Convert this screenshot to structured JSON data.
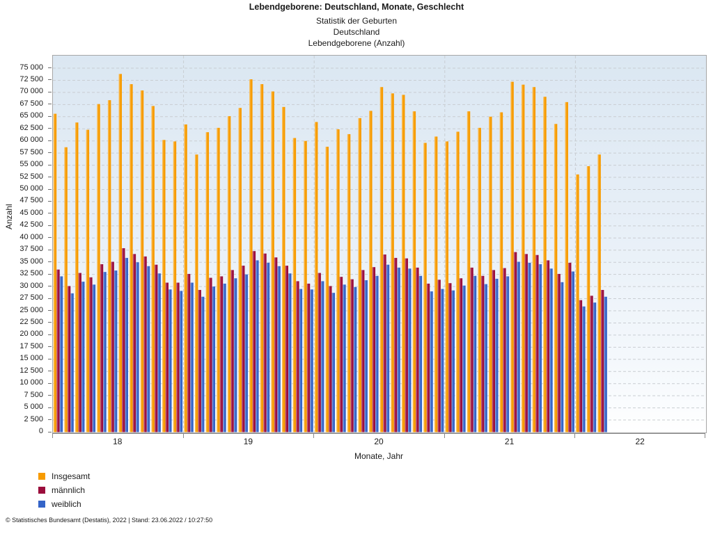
{
  "header": {
    "title": "Lebendgeborene: Deutschland, Monate, Geschlecht",
    "subtitle1": "Statistik der Geburten",
    "subtitle2": "Deutschland",
    "subtitle3": "Lebendgeborene (Anzahl)"
  },
  "chart_data": {
    "type": "bar",
    "title": "Lebendgeborene: Deutschland, Monate, Geschlecht",
    "xlabel": "Monate, Jahr",
    "ylabel": "Anzahl",
    "ylim": [
      0,
      77600
    ],
    "ytick_step": 2500,
    "ytick_max": 75000,
    "grid": true,
    "legend_position": "bottom-left",
    "x_year_labels": [
      "18",
      "19",
      "20",
      "21",
      "22"
    ],
    "x_axis_total_months": 60,
    "months": [
      "2018-01",
      "2018-02",
      "2018-03",
      "2018-04",
      "2018-05",
      "2018-06",
      "2018-07",
      "2018-08",
      "2018-09",
      "2018-10",
      "2018-11",
      "2018-12",
      "2019-01",
      "2019-02",
      "2019-03",
      "2019-04",
      "2019-05",
      "2019-06",
      "2019-07",
      "2019-08",
      "2019-09",
      "2019-10",
      "2019-11",
      "2019-12",
      "2020-01",
      "2020-02",
      "2020-03",
      "2020-04",
      "2020-05",
      "2020-06",
      "2020-07",
      "2020-08",
      "2020-09",
      "2020-10",
      "2020-11",
      "2020-12",
      "2021-01",
      "2021-02",
      "2021-03",
      "2021-04",
      "2021-05",
      "2021-06",
      "2021-07",
      "2021-08",
      "2021-09",
      "2021-10",
      "2021-11",
      "2021-12",
      "2022-01",
      "2022-02",
      "2022-03"
    ],
    "series": [
      {
        "name": "Insgesamt",
        "color": "#F79B00",
        "values": [
          65600,
          58700,
          63800,
          62300,
          67600,
          68400,
          73800,
          71700,
          70400,
          67200,
          60200,
          59900,
          63400,
          57200,
          61800,
          62700,
          65100,
          66800,
          72700,
          71700,
          70200,
          67000,
          60600,
          60000,
          63900,
          58800,
          62400,
          61400,
          64700,
          66200,
          71100,
          69800,
          69500,
          66100,
          59600,
          60900,
          59900,
          61900,
          66100,
          62700,
          65000,
          65900,
          72200,
          71600,
          71100,
          69100,
          63500,
          68000,
          53100,
          54800,
          57200
        ]
      },
      {
        "name": "männlich",
        "color": "#9B0D3C",
        "values": [
          33500,
          30100,
          32800,
          31900,
          34600,
          35100,
          37900,
          36700,
          36200,
          34500,
          30800,
          30800,
          32600,
          29300,
          31800,
          32100,
          33400,
          34300,
          37300,
          36800,
          36000,
          34300,
          31100,
          30600,
          32800,
          30100,
          32000,
          31500,
          33400,
          34000,
          36600,
          35900,
          35800,
          33900,
          30600,
          31400,
          30700,
          31700,
          33900,
          32200,
          33400,
          33800,
          37100,
          36700,
          36500,
          35400,
          32600,
          34900,
          27200,
          28100,
          29300
        ]
      },
      {
        "name": "weiblich",
        "color": "#3464C8",
        "values": [
          32100,
          28600,
          31000,
          30400,
          33000,
          33300,
          35900,
          35000,
          34200,
          32700,
          29400,
          29100,
          30800,
          27900,
          30000,
          30600,
          31700,
          32500,
          35400,
          34900,
          34200,
          32700,
          29500,
          29400,
          31100,
          28700,
          30400,
          29900,
          31300,
          32200,
          34500,
          33900,
          33700,
          32200,
          29000,
          29500,
          29200,
          30200,
          32200,
          30500,
          31600,
          32100,
          35100,
          34900,
          34600,
          33700,
          30900,
          33100,
          25900,
          26700,
          27900
        ]
      }
    ]
  },
  "footer": {
    "copyright": "© Statistisches Bundesamt (Destatis), 2022 | Stand: 23.06.2022 / 10:27:50"
  }
}
